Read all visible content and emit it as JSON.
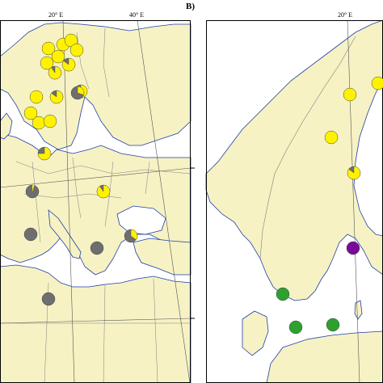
{
  "figure": {
    "panel_b_label": "B)",
    "longitude_labels": {
      "left_20": "20° E",
      "left_40": "40° E",
      "right_20": "20° E"
    }
  },
  "legend_colors": {
    "yellow": "#fff200",
    "grey": "#6e6e6e",
    "green": "#2ea02e",
    "purple": "#7a0a9a",
    "land": "#f6f2c4",
    "sea": "#ffffff",
    "border": "#7f7f7f",
    "coast": "#1f3fa8"
  },
  "map_a_points": [
    {
      "name": "a1",
      "type": "yellow",
      "yellow_frac": 1.0
    },
    {
      "name": "a2",
      "type": "yellow",
      "yellow_frac": 1.0
    },
    {
      "name": "a3",
      "type": "yellow",
      "yellow_frac": 1.0
    },
    {
      "name": "a4",
      "type": "yellow",
      "yellow_frac": 1.0
    },
    {
      "name": "a5",
      "type": "yellow",
      "yellow_frac": 1.0
    },
    {
      "name": "a6",
      "type": "yellow",
      "yellow_frac": 0.85
    },
    {
      "name": "a7",
      "type": "yellow",
      "yellow_frac": 1.0
    },
    {
      "name": "a8",
      "type": "yellow",
      "yellow_frac": 0.9
    },
    {
      "name": "a9",
      "type": "yellow",
      "yellow_frac": 0.8
    },
    {
      "name": "a10",
      "type": "yellow",
      "yellow_frac": 1.0
    },
    {
      "name": "a11",
      "type": "yellow",
      "yellow_frac": 0.85
    },
    {
      "name": "a12",
      "type": "mixed",
      "yellow_frac": 0.3
    },
    {
      "name": "a13",
      "type": "yellow",
      "yellow_frac": 1.0
    },
    {
      "name": "a14",
      "type": "yellow",
      "yellow_frac": 1.0
    },
    {
      "name": "a15",
      "type": "yellow",
      "yellow_frac": 1.0
    },
    {
      "name": "a16",
      "type": "yellow",
      "yellow_frac": 0.75
    },
    {
      "name": "a17",
      "type": "grey",
      "yellow_frac": 0.05
    },
    {
      "name": "a18",
      "type": "yellow",
      "yellow_frac": 0.9
    },
    {
      "name": "a19",
      "type": "grey",
      "yellow_frac": 0.0
    },
    {
      "name": "a20",
      "type": "mixed",
      "yellow_frac": 0.35
    },
    {
      "name": "a21",
      "type": "grey",
      "yellow_frac": 0.0
    },
    {
      "name": "a22",
      "type": "grey",
      "yellow_frac": 0.0
    }
  ],
  "map_b_points": [
    {
      "name": "b1",
      "type": "yellow",
      "yellow_frac": 1.0
    },
    {
      "name": "b2",
      "type": "yellow",
      "yellow_frac": 1.0
    },
    {
      "name": "b3",
      "type": "yellow",
      "yellow_frac": 1.0
    },
    {
      "name": "b4",
      "type": "yellow",
      "yellow_frac": 0.85
    },
    {
      "name": "b5",
      "type": "purple",
      "yellow_frac": 0.0
    },
    {
      "name": "b6",
      "type": "green",
      "yellow_frac": 0.0
    },
    {
      "name": "b7",
      "type": "green",
      "yellow_frac": 0.0
    },
    {
      "name": "b8",
      "type": "green",
      "yellow_frac": 0.0
    },
    {
      "name": "b9",
      "type": "green",
      "yellow_frac": 0.0
    }
  ]
}
